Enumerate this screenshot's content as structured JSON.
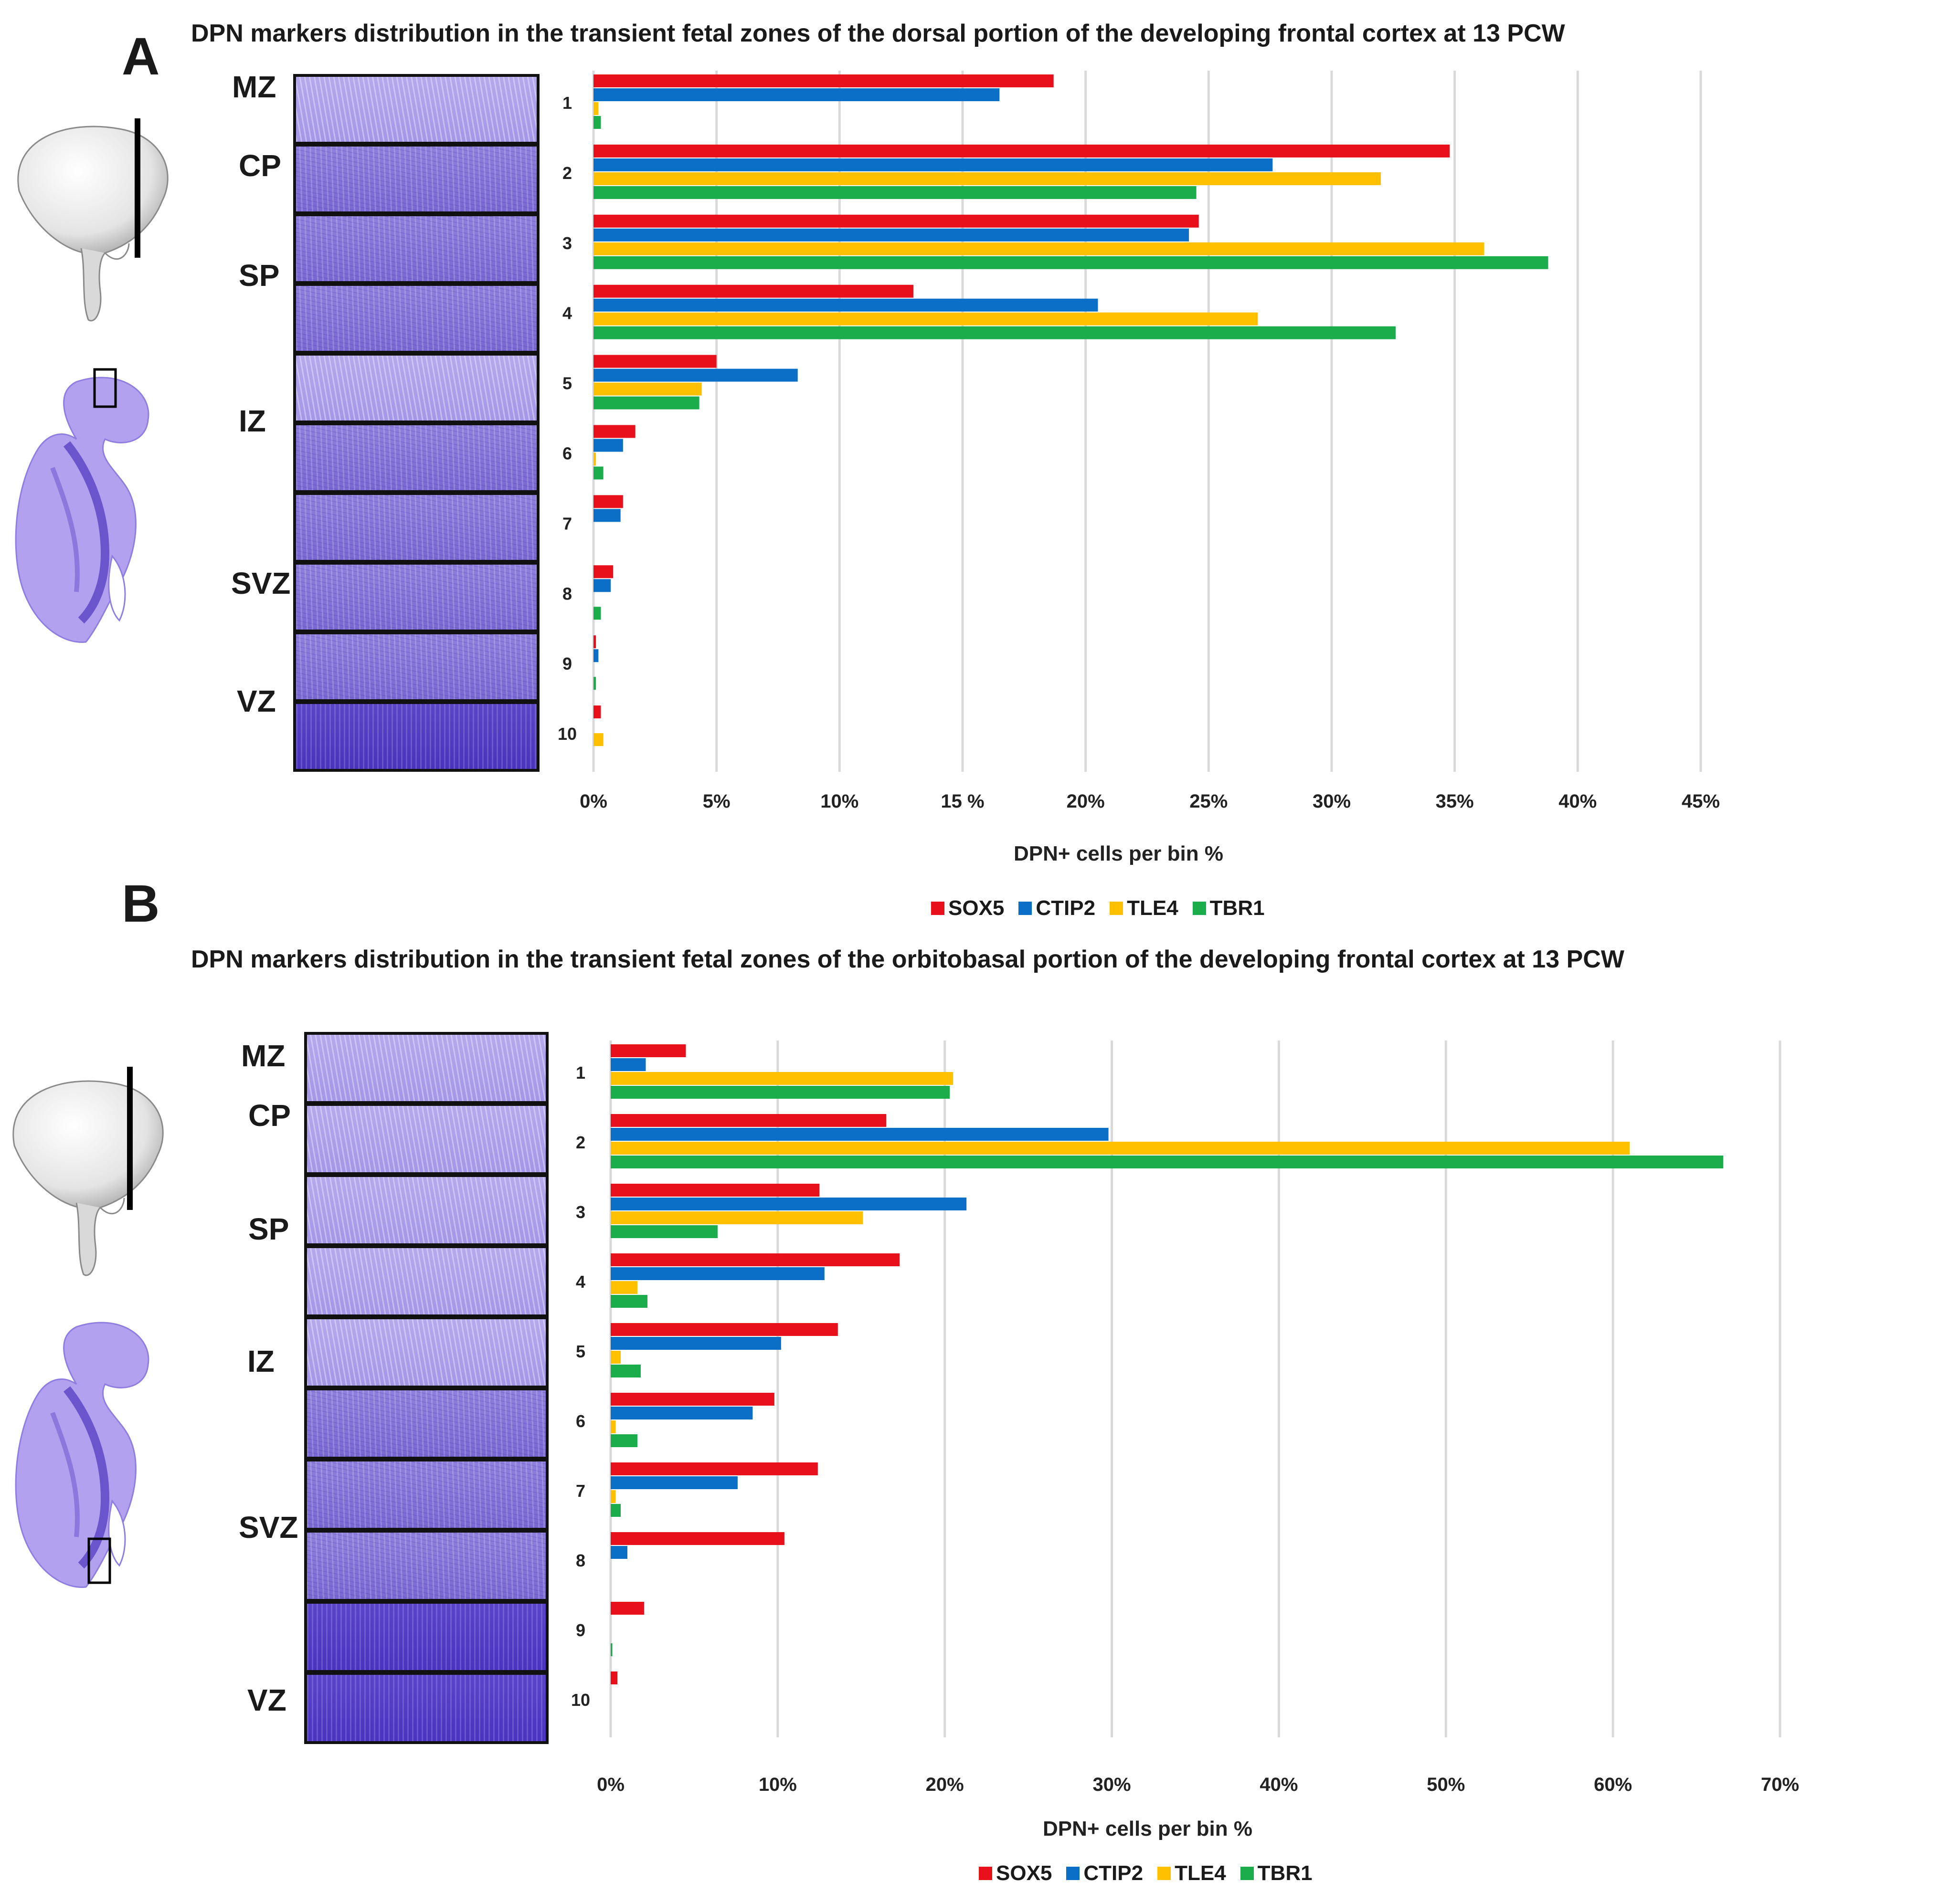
{
  "colors": {
    "SOX5": "#e8101a",
    "CTIP2": "#0b6fc7",
    "TLE4": "#ffc000",
    "TBR1": "#1bac4b",
    "grid": "#d9d9d9"
  },
  "panels": [
    {
      "letter": "A",
      "zones": [
        "MZ",
        "CP",
        "SP",
        "IZ",
        "SVZ",
        "VZ"
      ]
    },
    {
      "letter": "B",
      "zones": [
        "MZ",
        "CP",
        "SP",
        "IZ",
        "SVZ",
        "VZ"
      ]
    }
  ],
  "chart_data": [
    {
      "type": "bar",
      "orientation": "horizontal",
      "title": "DPN markers distribution in the transient fetal zones of the dorsal portion of the developing frontal cortex at 13 PCW",
      "xlabel": "DPN+ cells per bin %",
      "ylabel": "",
      "categories": [
        "1",
        "2",
        "3",
        "4",
        "5",
        "6",
        "7",
        "8",
        "9",
        "10"
      ],
      "x_tick_labels": [
        "0%",
        "5%",
        "10%",
        "15 %",
        "20%",
        "25%",
        "30%",
        "35%",
        "40%",
        "45%"
      ],
      "xlim": [
        0,
        45
      ],
      "grid": true,
      "legend_position": "bottom",
      "series": [
        {
          "name": "SOX5",
          "values": [
            18.7,
            34.8,
            24.6,
            13.0,
            5.0,
            1.7,
            1.2,
            0.8,
            0.1,
            0.3
          ]
        },
        {
          "name": "CTIP2",
          "values": [
            16.5,
            27.6,
            24.2,
            20.5,
            8.3,
            1.2,
            1.1,
            0.7,
            0.2,
            0.0
          ]
        },
        {
          "name": "TLE4",
          "values": [
            0.2,
            32.0,
            36.2,
            27.0,
            4.4,
            0.1,
            0.0,
            0.0,
            0.0,
            0.4
          ]
        },
        {
          "name": "TBR1",
          "values": [
            0.3,
            24.5,
            38.8,
            32.6,
            4.3,
            0.4,
            0.0,
            0.3,
            0.1,
            0.0
          ]
        }
      ]
    },
    {
      "type": "bar",
      "orientation": "horizontal",
      "title": "DPN markers distribution in the transient fetal zones of the orbitobasal portion of the developing frontal cortex at 13 PCW",
      "xlabel": "DPN+ cells per bin %",
      "ylabel": "",
      "categories": [
        "1",
        "2",
        "3",
        "4",
        "5",
        "6",
        "7",
        "8",
        "9",
        "10"
      ],
      "x_tick_labels": [
        "0%",
        "10%",
        "20%",
        "30%",
        "40%",
        "50%",
        "60%",
        "70%"
      ],
      "xlim": [
        0,
        70
      ],
      "grid": true,
      "legend_position": "bottom",
      "series": [
        {
          "name": "SOX5",
          "values": [
            4.5,
            16.5,
            12.5,
            17.3,
            13.6,
            9.8,
            12.4,
            10.4,
            2.0,
            0.4
          ]
        },
        {
          "name": "CTIP2",
          "values": [
            2.1,
            29.8,
            21.3,
            12.8,
            10.2,
            8.5,
            7.6,
            1.0,
            0.0,
            0.0
          ]
        },
        {
          "name": "TLE4",
          "values": [
            20.5,
            61.0,
            15.1,
            1.6,
            0.6,
            0.3,
            0.3,
            0.0,
            0.0,
            0.0
          ]
        },
        {
          "name": "TBR1",
          "values": [
            20.3,
            66.6,
            6.4,
            2.2,
            1.8,
            1.6,
            0.6,
            0.0,
            0.1,
            0.0
          ]
        }
      ]
    }
  ]
}
